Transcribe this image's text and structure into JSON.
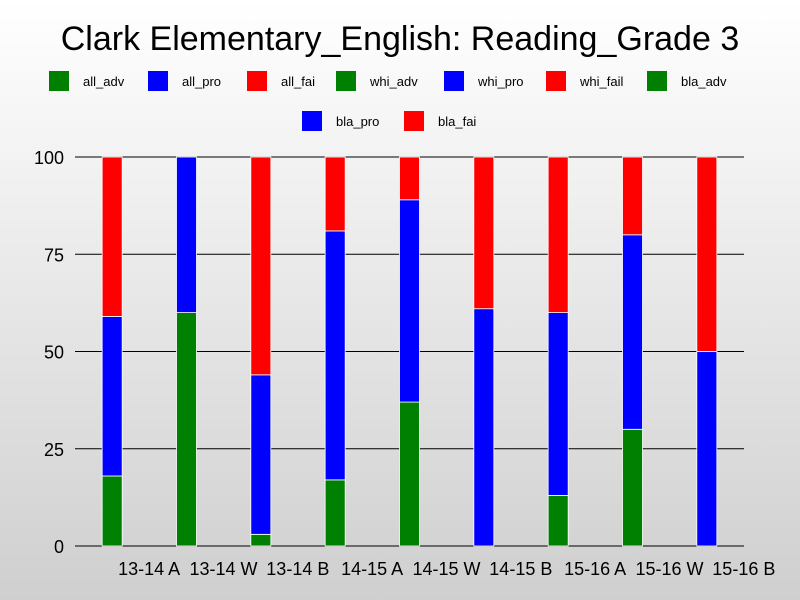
{
  "chart_data": {
    "type": "bar",
    "stacked": true,
    "title": "Clark Elementary_English: Reading_Grade 3",
    "xlabel": "",
    "ylabel": "",
    "ylim": [
      0,
      100
    ],
    "yticks": [
      0,
      25,
      50,
      75,
      100
    ],
    "grid": true,
    "legend_placement": "top",
    "categories": [
      "13-14 A",
      "13-14 W",
      "13-14 B",
      "14-15 A",
      "14-15 W",
      "14-15 B",
      "15-16 A",
      "15-16 W",
      "15-16 B"
    ],
    "legend": [
      {
        "name": "all_adv",
        "color": "#008000"
      },
      {
        "name": "all_pro",
        "color": "#0000ff"
      },
      {
        "name": "all_fai",
        "color": "#ff0000"
      },
      {
        "name": "whi_adv",
        "color": "#008000"
      },
      {
        "name": "whi_pro",
        "color": "#0000ff"
      },
      {
        "name": "whi_fail",
        "color": "#ff0000"
      },
      {
        "name": "bla_adv",
        "color": "#008000"
      },
      {
        "name": "bla_pro",
        "color": "#0000ff"
      },
      {
        "name": "bla_fai",
        "color": "#ff0000"
      }
    ],
    "series": [
      {
        "name": "adv",
        "color": "#008000",
        "values": [
          18,
          60,
          3,
          17,
          37,
          0,
          13,
          30,
          0
        ]
      },
      {
        "name": "pro",
        "color": "#0000ff",
        "values": [
          41,
          40,
          41,
          64,
          52,
          61,
          47,
          50,
          50
        ]
      },
      {
        "name": "fail",
        "color": "#ff0000",
        "values": [
          41,
          0,
          56,
          19,
          11,
          39,
          40,
          20,
          50
        ]
      }
    ]
  }
}
